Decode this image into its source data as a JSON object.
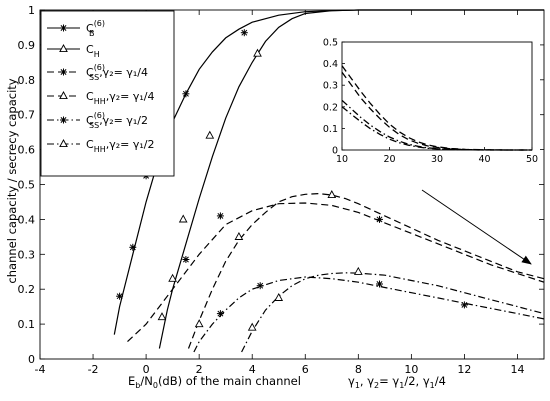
{
  "chart_data": {
    "type": "line",
    "xlabel_main": "E",
    "xlabel_sub1": "b",
    "xlabel_mid": "/N",
    "xlabel_sub2": "0",
    "xlabel_tail": "(dB)  of the main channel",
    "ylabel": "channel capacity / secrecy capacity",
    "xlim": [
      -4,
      15
    ],
    "ylim": [
      0,
      1
    ],
    "xticks": [
      -4,
      -2,
      0,
      2,
      4,
      6,
      8,
      10,
      12,
      14
    ],
    "yticks": [
      0,
      0.1,
      0.2,
      0.3,
      0.4,
      0.5,
      0.6,
      0.7,
      0.8,
      0.9,
      1
    ],
    "gamma_note": {
      "prefix": "γ",
      "s1": "1",
      "mid1": ", γ",
      "s2": "2",
      "mid2": "= γ",
      "s3": "1",
      "tail": "/2,  γ",
      "s4": "1",
      "end": "/4"
    },
    "legend": [
      {
        "main": "C",
        "sub": "B",
        "sup": "(6)",
        "rest": ""
      },
      {
        "main": "C",
        "sub": "H",
        "sup": "",
        "rest": ""
      },
      {
        "main": "C",
        "sub": "SS",
        "sup": "(6)",
        "rest": ",γ₂= γ₁/4"
      },
      {
        "main": "C",
        "sub": "HH",
        "sup": "",
        "rest": ",γ₂= γ₁/4"
      },
      {
        "main": "C",
        "sub": "SS",
        "sup": "(6)",
        "rest": ",γ₂= γ₁/2"
      },
      {
        "main": "C",
        "sub": "HH",
        "sup": "",
        "rest": ",γ₂= γ₁/2"
      }
    ],
    "series": [
      {
        "style": "solid",
        "marker": "star",
        "x": [
          -1.2,
          -1.0,
          -0.5,
          0.0,
          0.5,
          1.0,
          1.5,
          2.0,
          2.5,
          3.0,
          3.5,
          4.0,
          5.0,
          6.0,
          7.0,
          8.0,
          10.0,
          12.0,
          15.0
        ],
        "y": [
          0.07,
          0.15,
          0.3,
          0.45,
          0.58,
          0.68,
          0.76,
          0.83,
          0.88,
          0.92,
          0.945,
          0.965,
          0.985,
          0.995,
          0.998,
          1.0,
          1.0,
          1.0,
          1.0
        ],
        "markers_x": [
          -1.0,
          -0.5,
          0.0,
          1.5,
          3.7
        ],
        "markers_y": [
          0.18,
          0.32,
          0.525,
          0.76,
          0.935
        ]
      },
      {
        "style": "solid",
        "marker": "triangle",
        "x": [
          0.5,
          0.8,
          1.0,
          1.5,
          2.0,
          2.5,
          3.0,
          3.5,
          4.0,
          4.5,
          5.0,
          5.5,
          6.0,
          7.0,
          8.0,
          10.0,
          12.0,
          15.0
        ],
        "y": [
          0.03,
          0.14,
          0.2,
          0.33,
          0.46,
          0.58,
          0.69,
          0.78,
          0.85,
          0.91,
          0.95,
          0.975,
          0.99,
          0.998,
          1.0,
          1.0,
          1.0,
          1.0
        ],
        "markers_x": [
          0.6,
          1.0,
          1.4,
          2.4,
          4.2
        ],
        "markers_y": [
          0.12,
          0.23,
          0.4,
          0.64,
          0.875
        ]
      },
      {
        "style": "dashed",
        "marker": "star",
        "x": [
          -0.7,
          0.0,
          0.5,
          1.0,
          1.5,
          2.0,
          3.0,
          4.0,
          5.0,
          6.0,
          7.0,
          8.0,
          9.0,
          10.0,
          11.0,
          12.0,
          13.0,
          14.0,
          15.0
        ],
        "y": [
          0.05,
          0.1,
          0.15,
          0.2,
          0.25,
          0.3,
          0.385,
          0.425,
          0.445,
          0.447,
          0.44,
          0.42,
          0.39,
          0.36,
          0.33,
          0.3,
          0.27,
          0.245,
          0.22
        ],
        "markers_x": [
          1.5,
          2.8,
          8.8
        ],
        "markers_y": [
          0.285,
          0.41,
          0.4
        ]
      },
      {
        "style": "dashed",
        "marker": "triangle",
        "x": [
          1.6,
          2.0,
          2.5,
          3.0,
          3.5,
          4.0,
          4.5,
          5.0,
          5.5,
          6.0,
          6.5,
          7.0,
          7.5,
          8.0,
          9.0,
          10.0,
          11.0,
          12.0,
          13.0,
          14.0,
          15.0
        ],
        "y": [
          0.03,
          0.11,
          0.2,
          0.28,
          0.34,
          0.385,
          0.42,
          0.45,
          0.465,
          0.472,
          0.474,
          0.47,
          0.46,
          0.445,
          0.41,
          0.375,
          0.34,
          0.31,
          0.28,
          0.25,
          0.23
        ],
        "markers_x": [
          3.5,
          7.0
        ],
        "markers_y": [
          0.35,
          0.47
        ]
      },
      {
        "style": "dashdot",
        "marker": "star",
        "x": [
          1.8,
          2.0,
          2.5,
          3.0,
          3.5,
          4.0,
          5.0,
          6.0,
          7.0,
          8.0,
          9.0,
          10.0,
          11.0,
          12.0,
          13.0,
          14.0,
          15.0
        ],
        "y": [
          0.02,
          0.05,
          0.1,
          0.14,
          0.175,
          0.2,
          0.225,
          0.235,
          0.23,
          0.22,
          0.205,
          0.19,
          0.175,
          0.16,
          0.145,
          0.13,
          0.115
        ],
        "markers_x": [
          2.8,
          4.3,
          8.8,
          12.0
        ],
        "markers_y": [
          0.13,
          0.21,
          0.215,
          0.155
        ]
      },
      {
        "style": "dashdot",
        "marker": "triangle",
        "x": [
          3.6,
          4.0,
          4.5,
          5.0,
          5.5,
          6.0,
          6.5,
          7.0,
          7.5,
          8.0,
          9.0,
          10.0,
          11.0,
          12.0,
          13.0,
          14.0,
          15.0
        ],
        "y": [
          0.02,
          0.08,
          0.14,
          0.18,
          0.21,
          0.23,
          0.24,
          0.245,
          0.247,
          0.246,
          0.24,
          0.225,
          0.21,
          0.19,
          0.17,
          0.15,
          0.13
        ],
        "markers_x": [
          2.0,
          4.0,
          5.0,
          8.0
        ],
        "markers_y": [
          0.1,
          0.09,
          0.175,
          0.25
        ]
      }
    ],
    "inset": {
      "xlim": [
        10,
        50
      ],
      "ylim": [
        0,
        0.5
      ],
      "xticks": [
        10,
        20,
        30,
        40,
        50
      ],
      "yticks": [
        0,
        0.1,
        0.2,
        0.3,
        0.4,
        0.5
      ],
      "series": [
        {
          "style": "dashed",
          "x": [
            10,
            12,
            14,
            16,
            18,
            20,
            22,
            24,
            26,
            28,
            30,
            33,
            36,
            40,
            45,
            50
          ],
          "y": [
            0.39,
            0.33,
            0.27,
            0.215,
            0.165,
            0.12,
            0.085,
            0.058,
            0.038,
            0.024,
            0.015,
            0.007,
            0.003,
            0.001,
            0.0,
            0.0
          ]
        },
        {
          "style": "dashed",
          "x": [
            10,
            12,
            14,
            16,
            18,
            20,
            22,
            24,
            26,
            28,
            30,
            33,
            36,
            40,
            45,
            50
          ],
          "y": [
            0.36,
            0.3,
            0.24,
            0.19,
            0.145,
            0.105,
            0.072,
            0.048,
            0.031,
            0.019,
            0.012,
            0.005,
            0.002,
            0.001,
            0.0,
            0.0
          ]
        },
        {
          "style": "dashdot",
          "x": [
            10,
            12,
            14,
            16,
            18,
            20,
            22,
            24,
            26,
            28,
            30,
            33,
            36,
            40,
            45,
            50
          ],
          "y": [
            0.23,
            0.19,
            0.15,
            0.115,
            0.085,
            0.06,
            0.041,
            0.027,
            0.017,
            0.01,
            0.006,
            0.003,
            0.001,
            0.0,
            0.0,
            0.0
          ]
        },
        {
          "style": "dashdot",
          "x": [
            10,
            12,
            14,
            16,
            18,
            20,
            22,
            24,
            26,
            28,
            30,
            33,
            36,
            40,
            45,
            50
          ],
          "y": [
            0.2,
            0.165,
            0.13,
            0.098,
            0.072,
            0.05,
            0.034,
            0.022,
            0.014,
            0.008,
            0.005,
            0.002,
            0.001,
            0.0,
            0.0,
            0.0
          ]
        }
      ]
    }
  }
}
